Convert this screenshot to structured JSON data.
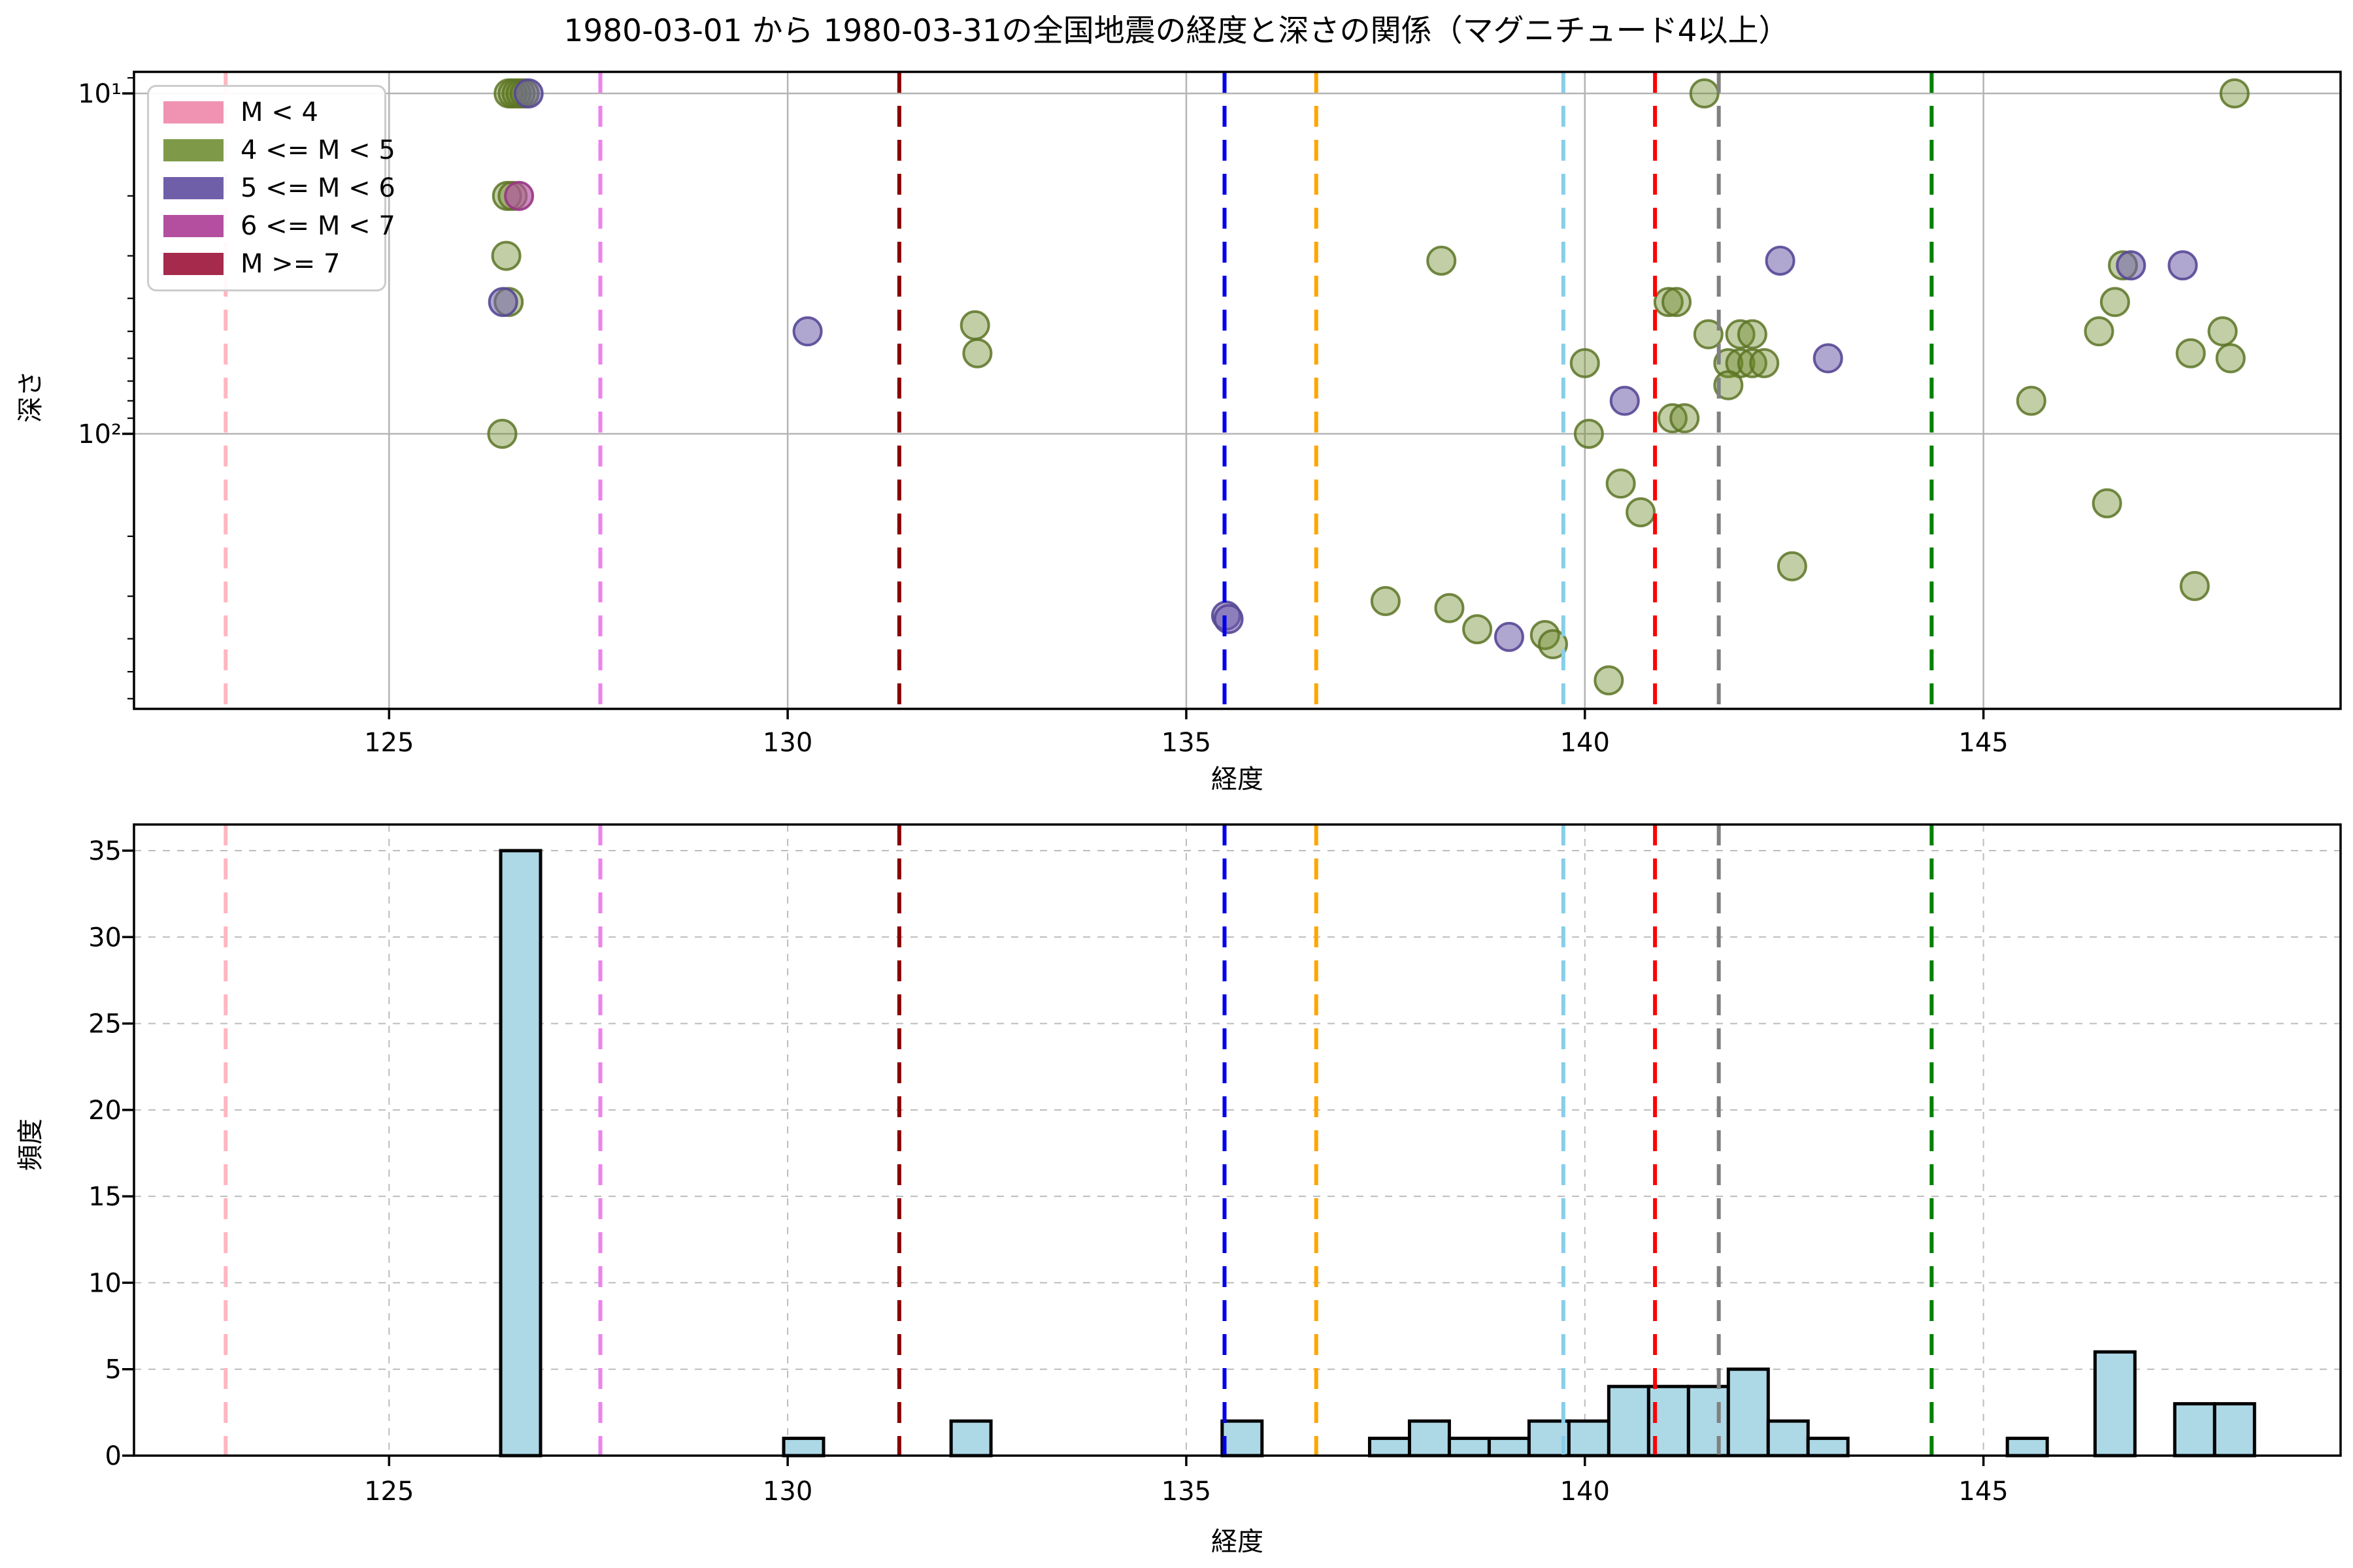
{
  "figure": {
    "title": "1980-03-01 から 1980-03-31の全国地震の経度と深さの関係（マグニチュード4以上）",
    "background": "#ffffff"
  },
  "chart_data": [
    {
      "type": "scatter",
      "title": "1980-03-01 から 1980-03-31の全国地震の経度と深さの関係（マグニチュード4以上）",
      "xlabel": "経度",
      "ylabel": "深さ",
      "yscale": "log (inverted, depth increases downward)",
      "xlim": [
        121.8,
        149.48
      ],
      "depth_range_shown": [
        8.65,
        643
      ],
      "xticks": [
        125,
        130,
        135,
        140,
        145
      ],
      "yticks": [
        {
          "v": 10,
          "label": "10¹"
        },
        {
          "v": 100,
          "label": "10²"
        }
      ],
      "grid": "solid gray on major ticks",
      "legend_position": "upper left",
      "series": [
        {
          "name": "4 <= M < 5",
          "marker_fill": "rgba(110,139,44,0.42)",
          "marker_stroke": "rgba(92,116,36,0.85)",
          "points": [
            [
              126.5,
              10
            ],
            [
              126.55,
              10
            ],
            [
              126.6,
              10
            ],
            [
              126.65,
              10
            ],
            [
              126.7,
              10
            ],
            [
              126.48,
              20
            ],
            [
              126.55,
              20
            ],
            [
              126.47,
              30
            ],
            [
              126.5,
              41
            ],
            [
              126.42,
              100
            ],
            [
              132.35,
              48
            ],
            [
              132.38,
              58
            ],
            [
              137.5,
              310
            ],
            [
              138.2,
              31
            ],
            [
              138.3,
              325
            ],
            [
              138.65,
              375
            ],
            [
              139.5,
              390
            ],
            [
              139.6,
              415
            ],
            [
              140.0,
              62
            ],
            [
              140.05,
              100
            ],
            [
              140.3,
              530
            ],
            [
              140.45,
              140
            ],
            [
              140.7,
              170
            ],
            [
              141.05,
              41
            ],
            [
              141.15,
              41
            ],
            [
              141.1,
              90
            ],
            [
              141.25,
              90
            ],
            [
              141.5,
              10
            ],
            [
              141.55,
              51
            ],
            [
              141.95,
              51
            ],
            [
              142.1,
              51
            ],
            [
              141.8,
              62
            ],
            [
              141.95,
              62
            ],
            [
              142.1,
              62
            ],
            [
              142.25,
              62
            ],
            [
              141.8,
              72
            ],
            [
              142.6,
              245
            ],
            [
              145.6,
              80
            ],
            [
              146.45,
              50
            ],
            [
              146.65,
              41
            ],
            [
              146.75,
              32
            ],
            [
              146.55,
              160
            ],
            [
              147.6,
              58
            ],
            [
              147.65,
              280
            ],
            [
              148.0,
              50
            ],
            [
              148.1,
              60
            ],
            [
              148.15,
              10
            ]
          ]
        },
        {
          "name": "5 <= M < 6",
          "marker_fill": "rgba(111,95,169,0.55)",
          "marker_stroke": "rgba(88,72,150,0.9)",
          "points": [
            [
              126.75,
              10
            ],
            [
              126.43,
              41
            ],
            [
              130.25,
              50
            ],
            [
              135.5,
              342
            ],
            [
              135.53,
              350
            ],
            [
              139.05,
              395
            ],
            [
              140.5,
              80
            ],
            [
              142.45,
              31
            ],
            [
              143.05,
              60
            ],
            [
              146.85,
              32
            ],
            [
              147.5,
              32
            ]
          ]
        },
        {
          "name": "6 <= M < 7",
          "marker_fill": "rgba(180,79,160,0.65)",
          "marker_stroke": "rgba(150,55,130,0.9)",
          "points": [
            [
              126.63,
              20
            ]
          ]
        }
      ],
      "legend": {
        "items": [
          {
            "label": "M < 4",
            "color": "#F093B2"
          },
          {
            "label": "4 <= M < 5",
            "color": "#7E9A49"
          },
          {
            "label": "5 <= M < 6",
            "color": "#6F5FA9"
          },
          {
            "label": "6 <= M < 7",
            "color": "#B44FA0"
          },
          {
            "label": "M >= 7",
            "color": "#A52A4C"
          }
        ]
      }
    },
    {
      "type": "bar",
      "xlabel": "経度",
      "ylabel": "頻度",
      "xlim": [
        121.8,
        149.48
      ],
      "ylim": [
        0,
        36.5
      ],
      "xticks": [
        125,
        130,
        135,
        140,
        145
      ],
      "yticks": [
        0,
        5,
        10,
        15,
        20,
        25,
        30,
        35
      ],
      "grid": "dashed light gray, both axes",
      "bar_color": "#ADD8E6",
      "bar_edge_color": "#000000",
      "bin_width": 0.5,
      "bars": [
        [
          126.65,
          35
        ],
        [
          130.2,
          1
        ],
        [
          132.3,
          2
        ],
        [
          135.7,
          2
        ],
        [
          137.55,
          1
        ],
        [
          138.05,
          2
        ],
        [
          138.55,
          1
        ],
        [
          139.05,
          1
        ],
        [
          139.55,
          2
        ],
        [
          140.05,
          2
        ],
        [
          140.55,
          4
        ],
        [
          141.05,
          4
        ],
        [
          141.55,
          4
        ],
        [
          142.05,
          5
        ],
        [
          142.55,
          2
        ],
        [
          143.05,
          1
        ],
        [
          145.55,
          1
        ],
        [
          146.65,
          6
        ],
        [
          147.65,
          3
        ],
        [
          148.15,
          3
        ]
      ]
    }
  ],
  "vlines": [
    {
      "name": "pink",
      "x": 122.95,
      "color": "#FFB6C1"
    },
    {
      "name": "violet",
      "x": 127.65,
      "color": "#EE82EE"
    },
    {
      "name": "darkred",
      "x": 131.4,
      "color": "#8B0000"
    },
    {
      "name": "blue",
      "x": 135.48,
      "color": "#0000EE"
    },
    {
      "name": "orange",
      "x": 136.63,
      "color": "#FFA500"
    },
    {
      "name": "lightblue",
      "x": 139.73,
      "color": "#87CEEB"
    },
    {
      "name": "red",
      "x": 140.88,
      "color": "#FF0000"
    },
    {
      "name": "gray",
      "x": 141.68,
      "color": "#808080"
    },
    {
      "name": "green",
      "x": 144.35,
      "color": "#008000"
    }
  ]
}
